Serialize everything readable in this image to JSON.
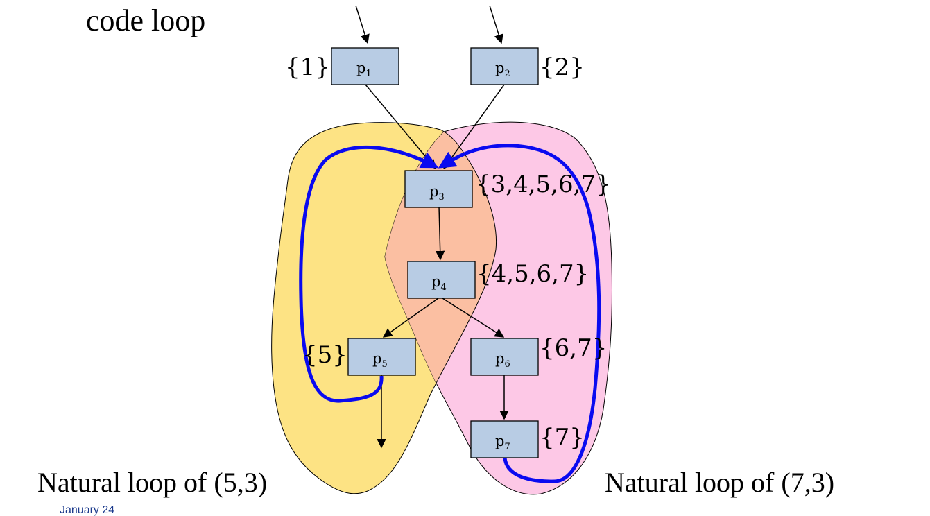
{
  "title": "code loop",
  "captions": {
    "left": "Natural loop of (5,3)",
    "right": "Natural loop of (7,3)"
  },
  "footer": {
    "date": "January 24"
  },
  "nodes": [
    {
      "id": "p1",
      "base": "p",
      "sub": "1",
      "set": "{1}"
    },
    {
      "id": "p2",
      "base": "p",
      "sub": "2",
      "set": "{2}"
    },
    {
      "id": "p3",
      "base": "p",
      "sub": "3",
      "set": "{3,4,5,6,7}"
    },
    {
      "id": "p4",
      "base": "p",
      "sub": "4",
      "set": "{4,5,6,7}"
    },
    {
      "id": "p5",
      "base": "p",
      "sub": "5",
      "set": "{5}"
    },
    {
      "id": "p6",
      "base": "p",
      "sub": "6",
      "set": "{6,7}"
    },
    {
      "id": "p7",
      "base": "p",
      "sub": "7",
      "set": "{7}"
    }
  ],
  "edges": [
    [
      "p1",
      "p3"
    ],
    [
      "p2",
      "p3"
    ],
    [
      "p3",
      "p4"
    ],
    [
      "p4",
      "p5"
    ],
    [
      "p4",
      "p6"
    ],
    [
      "p6",
      "p7"
    ]
  ],
  "back_edges": [
    [
      "p5",
      "p3"
    ],
    [
      "p7",
      "p3"
    ]
  ],
  "colors": {
    "node_fill": "#b8cce4",
    "left_region": "#fde384",
    "right_region": "#fdc8e6",
    "overlap_region": "#fbbfa2",
    "back_edge": "#0a0af0",
    "footer_text": "#1b3a8c"
  }
}
